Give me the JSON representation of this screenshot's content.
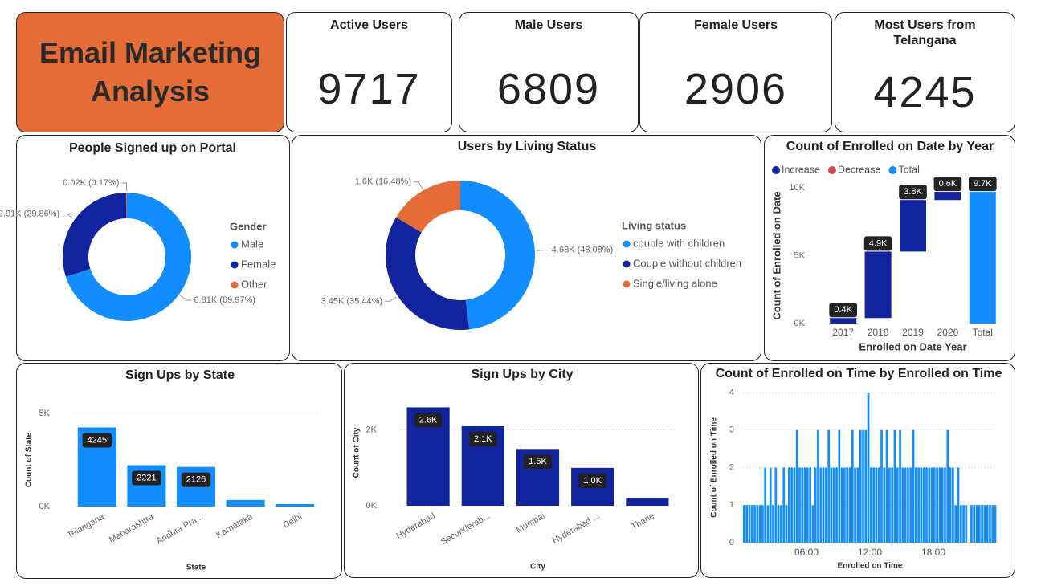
{
  "header": {
    "title": "Email Marketing Analysis"
  },
  "cards": [
    {
      "title": "Active Users",
      "value": 9717
    },
    {
      "title": "Male Users",
      "value": 6809
    },
    {
      "title": "Female Users",
      "value": 2906
    },
    {
      "title": "Most Users from Telangana",
      "value": 4245
    }
  ],
  "chart_data": [
    {
      "type": "donut",
      "title": "People Signed up on Portal",
      "legend_title": "Gender",
      "categories": [
        "Male",
        "Female",
        "Other"
      ],
      "values": [
        6809,
        2906,
        17
      ],
      "value_labels": [
        "6.81K (69.97%)",
        "2.91K (29.86%)",
        "0.02K (0.17%)"
      ],
      "colors": [
        "#118DFF",
        "#12239E",
        "#E66C37"
      ]
    },
    {
      "type": "donut",
      "title": "Users by Living Status",
      "legend_title": "Living status",
      "categories": [
        "couple with children",
        "Couple without children",
        "Single/living alone"
      ],
      "values": [
        4679,
        3449,
        1604
      ],
      "value_labels": [
        "4.68K (48.08%)",
        "3.45K (35.44%)",
        "1.6K (16.48%)"
      ],
      "colors": [
        "#118DFF",
        "#12239E",
        "#E66C37"
      ]
    },
    {
      "type": "waterfall",
      "title": "Count of Enrolled on Date by Year",
      "legend": [
        {
          "name": "Increase",
          "color": "#12239E"
        },
        {
          "name": "Decrease",
          "color": "#D64550"
        },
        {
          "name": "Total",
          "color": "#118DFF"
        }
      ],
      "categories": [
        "2017",
        "2018",
        "2019",
        "2020",
        "Total"
      ],
      "values": [
        400,
        4900,
        3800,
        600,
        9700
      ],
      "value_labels": [
        "0.4K",
        "4.9K",
        "3.8K",
        "0.6K",
        "9.7K"
      ],
      "xlabel": "Enrolled on Date Year",
      "ylabel": "Count of Enrolled on Date",
      "ylim": [
        0,
        10000
      ],
      "yticks": [
        {
          "value": 0,
          "label": "0K"
        },
        {
          "value": 5000,
          "label": "5K"
        },
        {
          "value": 10000,
          "label": "10K"
        }
      ]
    },
    {
      "type": "bar",
      "title": "Sign Ups by State",
      "categories": [
        "Telangana",
        "Maharashtra",
        "Andhra Pra...",
        "Karnataka",
        "Delhi"
      ],
      "values": [
        4245,
        2221,
        2126,
        350,
        130
      ],
      "color": "#118DFF",
      "xlabel": "State",
      "ylabel": "Count of State",
      "grid": true,
      "ylim": [
        0,
        5000
      ],
      "yticks": [
        {
          "value": 0,
          "label": "0K"
        },
        {
          "value": 5000,
          "label": "5K"
        }
      ]
    },
    {
      "type": "bar",
      "title": "Sign Ups by City",
      "categories": [
        "Hyderabad",
        "Secunderab...",
        "Mumbai",
        "Hyderabad ...",
        "Thane"
      ],
      "values": [
        2600,
        2100,
        1500,
        1000,
        210
      ],
      "value_labels": [
        "2.6K",
        "2.1K",
        "1.5K",
        "1.0K",
        null
      ],
      "color": "#12239E",
      "xlabel": "City",
      "ylabel": "Count of City",
      "grid": true,
      "ylim": [
        0,
        2800
      ],
      "yticks": [
        {
          "value": 0,
          "label": "0K"
        },
        {
          "value": 2000,
          "label": "2K"
        }
      ]
    },
    {
      "type": "histogram",
      "title": "Count of Enrolled on Time by Enrolled on Time",
      "bins": [
        0,
        0.25,
        0.5,
        0.75,
        1,
        1.25,
        1.5,
        1.75,
        2,
        2.25,
        2.5,
        2.75,
        3,
        3.25,
        3.5,
        3.75,
        4,
        4.25,
        4.5,
        4.75,
        5,
        5.25,
        5.5,
        5.75,
        6,
        6.25,
        6.5,
        6.75,
        7,
        7.25,
        7.5,
        7.75,
        8,
        8.25,
        8.5,
        8.75,
        9,
        9.25,
        9.5,
        9.75,
        10,
        10.25,
        10.5,
        10.75,
        11,
        11.25,
        11.5,
        11.75,
        12,
        12.25,
        12.5,
        12.75,
        13,
        13.25,
        13.5,
        13.75,
        14,
        14.25,
        14.5,
        14.75,
        15,
        15.25,
        15.5,
        15.75,
        16,
        16.25,
        16.5,
        16.75,
        17,
        17.25,
        17.5,
        17.75,
        18,
        18.25,
        18.5,
        18.75,
        19,
        19.25,
        19.5,
        19.75,
        20,
        20.25,
        20.5,
        20.75,
        21,
        21.25,
        21.5,
        21.75,
        22,
        22.25,
        22.5,
        22.75,
        23,
        23.25,
        23.5,
        23.75,
        24
      ],
      "values": [
        1,
        1,
        1,
        1,
        1,
        1,
        1,
        1,
        2,
        1,
        2,
        1,
        2,
        1,
        1,
        2,
        1,
        2,
        2,
        2,
        3,
        2,
        2,
        2,
        2,
        2,
        1,
        2,
        3,
        2,
        2,
        2,
        3,
        2,
        2,
        2,
        3,
        2,
        2,
        2,
        2,
        3,
        2,
        2,
        3,
        3,
        3,
        4,
        2,
        2,
        2,
        2,
        3,
        2,
        3,
        2,
        2,
        3,
        2,
        3,
        2,
        2,
        2,
        2,
        3,
        2,
        2,
        2,
        2,
        2,
        2,
        2,
        2,
        2,
        2,
        2,
        2,
        3,
        2,
        2,
        1,
        2,
        1,
        1,
        1,
        0,
        1,
        1,
        1,
        1,
        1,
        1,
        1,
        1,
        1,
        1
      ],
      "color": "#118DFF",
      "xlabel": "Enrolled on Time",
      "ylabel": "Count of Enrolled on Time",
      "grid": true,
      "xlim": [
        0,
        24
      ],
      "xticks": [
        {
          "value": 6,
          "label": "06:00"
        },
        {
          "value": 12,
          "label": "12:00"
        },
        {
          "value": 18,
          "label": "18:00"
        }
      ],
      "ylim": [
        0,
        4
      ],
      "yticks": [
        0,
        1,
        2,
        3,
        4
      ]
    }
  ]
}
